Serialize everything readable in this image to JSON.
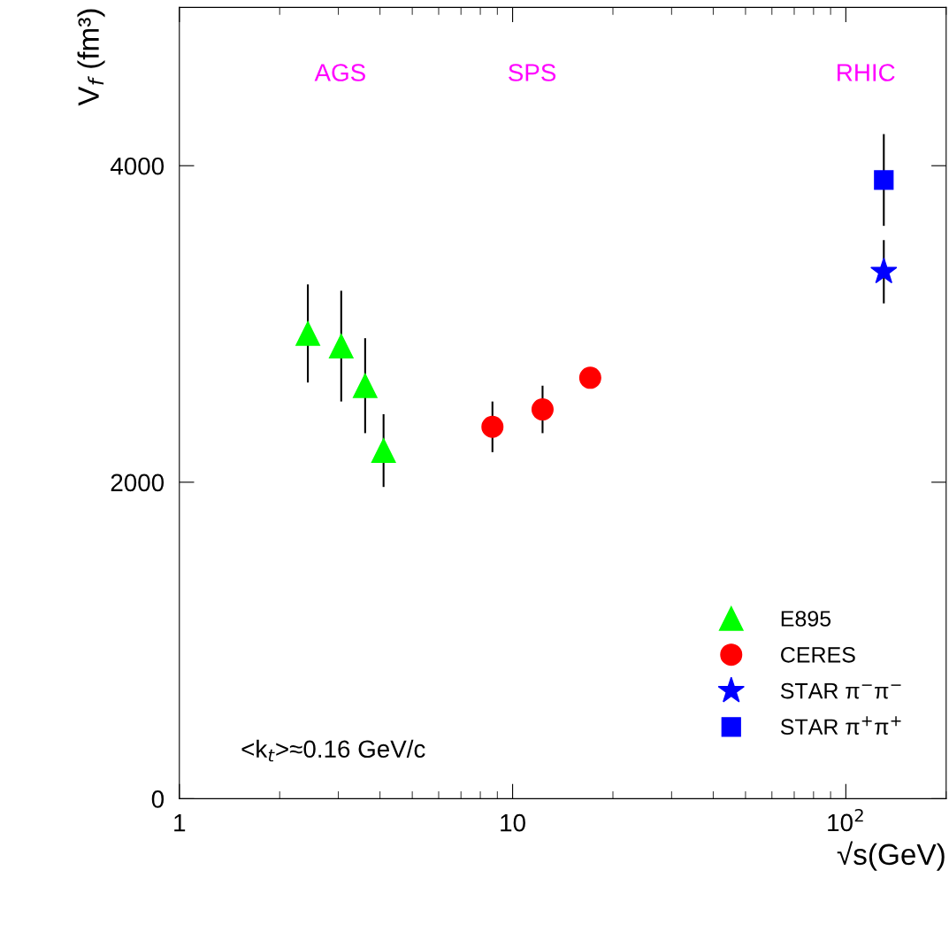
{
  "chart_data": {
    "type": "scatter",
    "xlabel": "√s(GeV)",
    "ylabel": "V$_{f}$ (fm³)",
    "log": "x",
    "xlim": [
      1,
      200
    ],
    "ylim": [
      0,
      5000
    ],
    "xticks": [
      1,
      10,
      {
        "value": 100,
        "label": "10$^{2}$"
      }
    ],
    "yticks": [
      0,
      2000,
      4000
    ],
    "grid": false,
    "legend": "bottom right",
    "series": [
      {
        "name": "E895",
        "color": "#00ff00",
        "marker": "triangle",
        "x": [
          2.43,
          3.06,
          3.61,
          4.1
        ],
        "values": [
          2940,
          2860,
          2610,
          2200
        ],
        "errors": [
          310,
          350,
          300,
          230
        ]
      },
      {
        "name": "CERES",
        "color": "#ff0000",
        "marker": "circle",
        "x": [
          8.7,
          12.3,
          17.1
        ],
        "values": [
          2350,
          2460,
          2660
        ],
        "errors": [
          160,
          150,
          null
        ]
      },
      {
        "name": "STAR π$^{−}$π$^{−}$",
        "color": "#0000ff",
        "marker": "star",
        "x": [
          130
        ],
        "values": [
          3330
        ],
        "errors": [
          200
        ]
      },
      {
        "name": "STAR π$^{+}$π$^{+}$",
        "color": "#0000ff",
        "marker": "square",
        "x": [
          130
        ],
        "values": [
          3910
        ],
        "errors": [
          290
        ]
      }
    ],
    "annotations": [
      "AGS",
      "SPS",
      "RHIC",
      "<k$_{t}$>≈0.16 GeV/c"
    ]
  }
}
